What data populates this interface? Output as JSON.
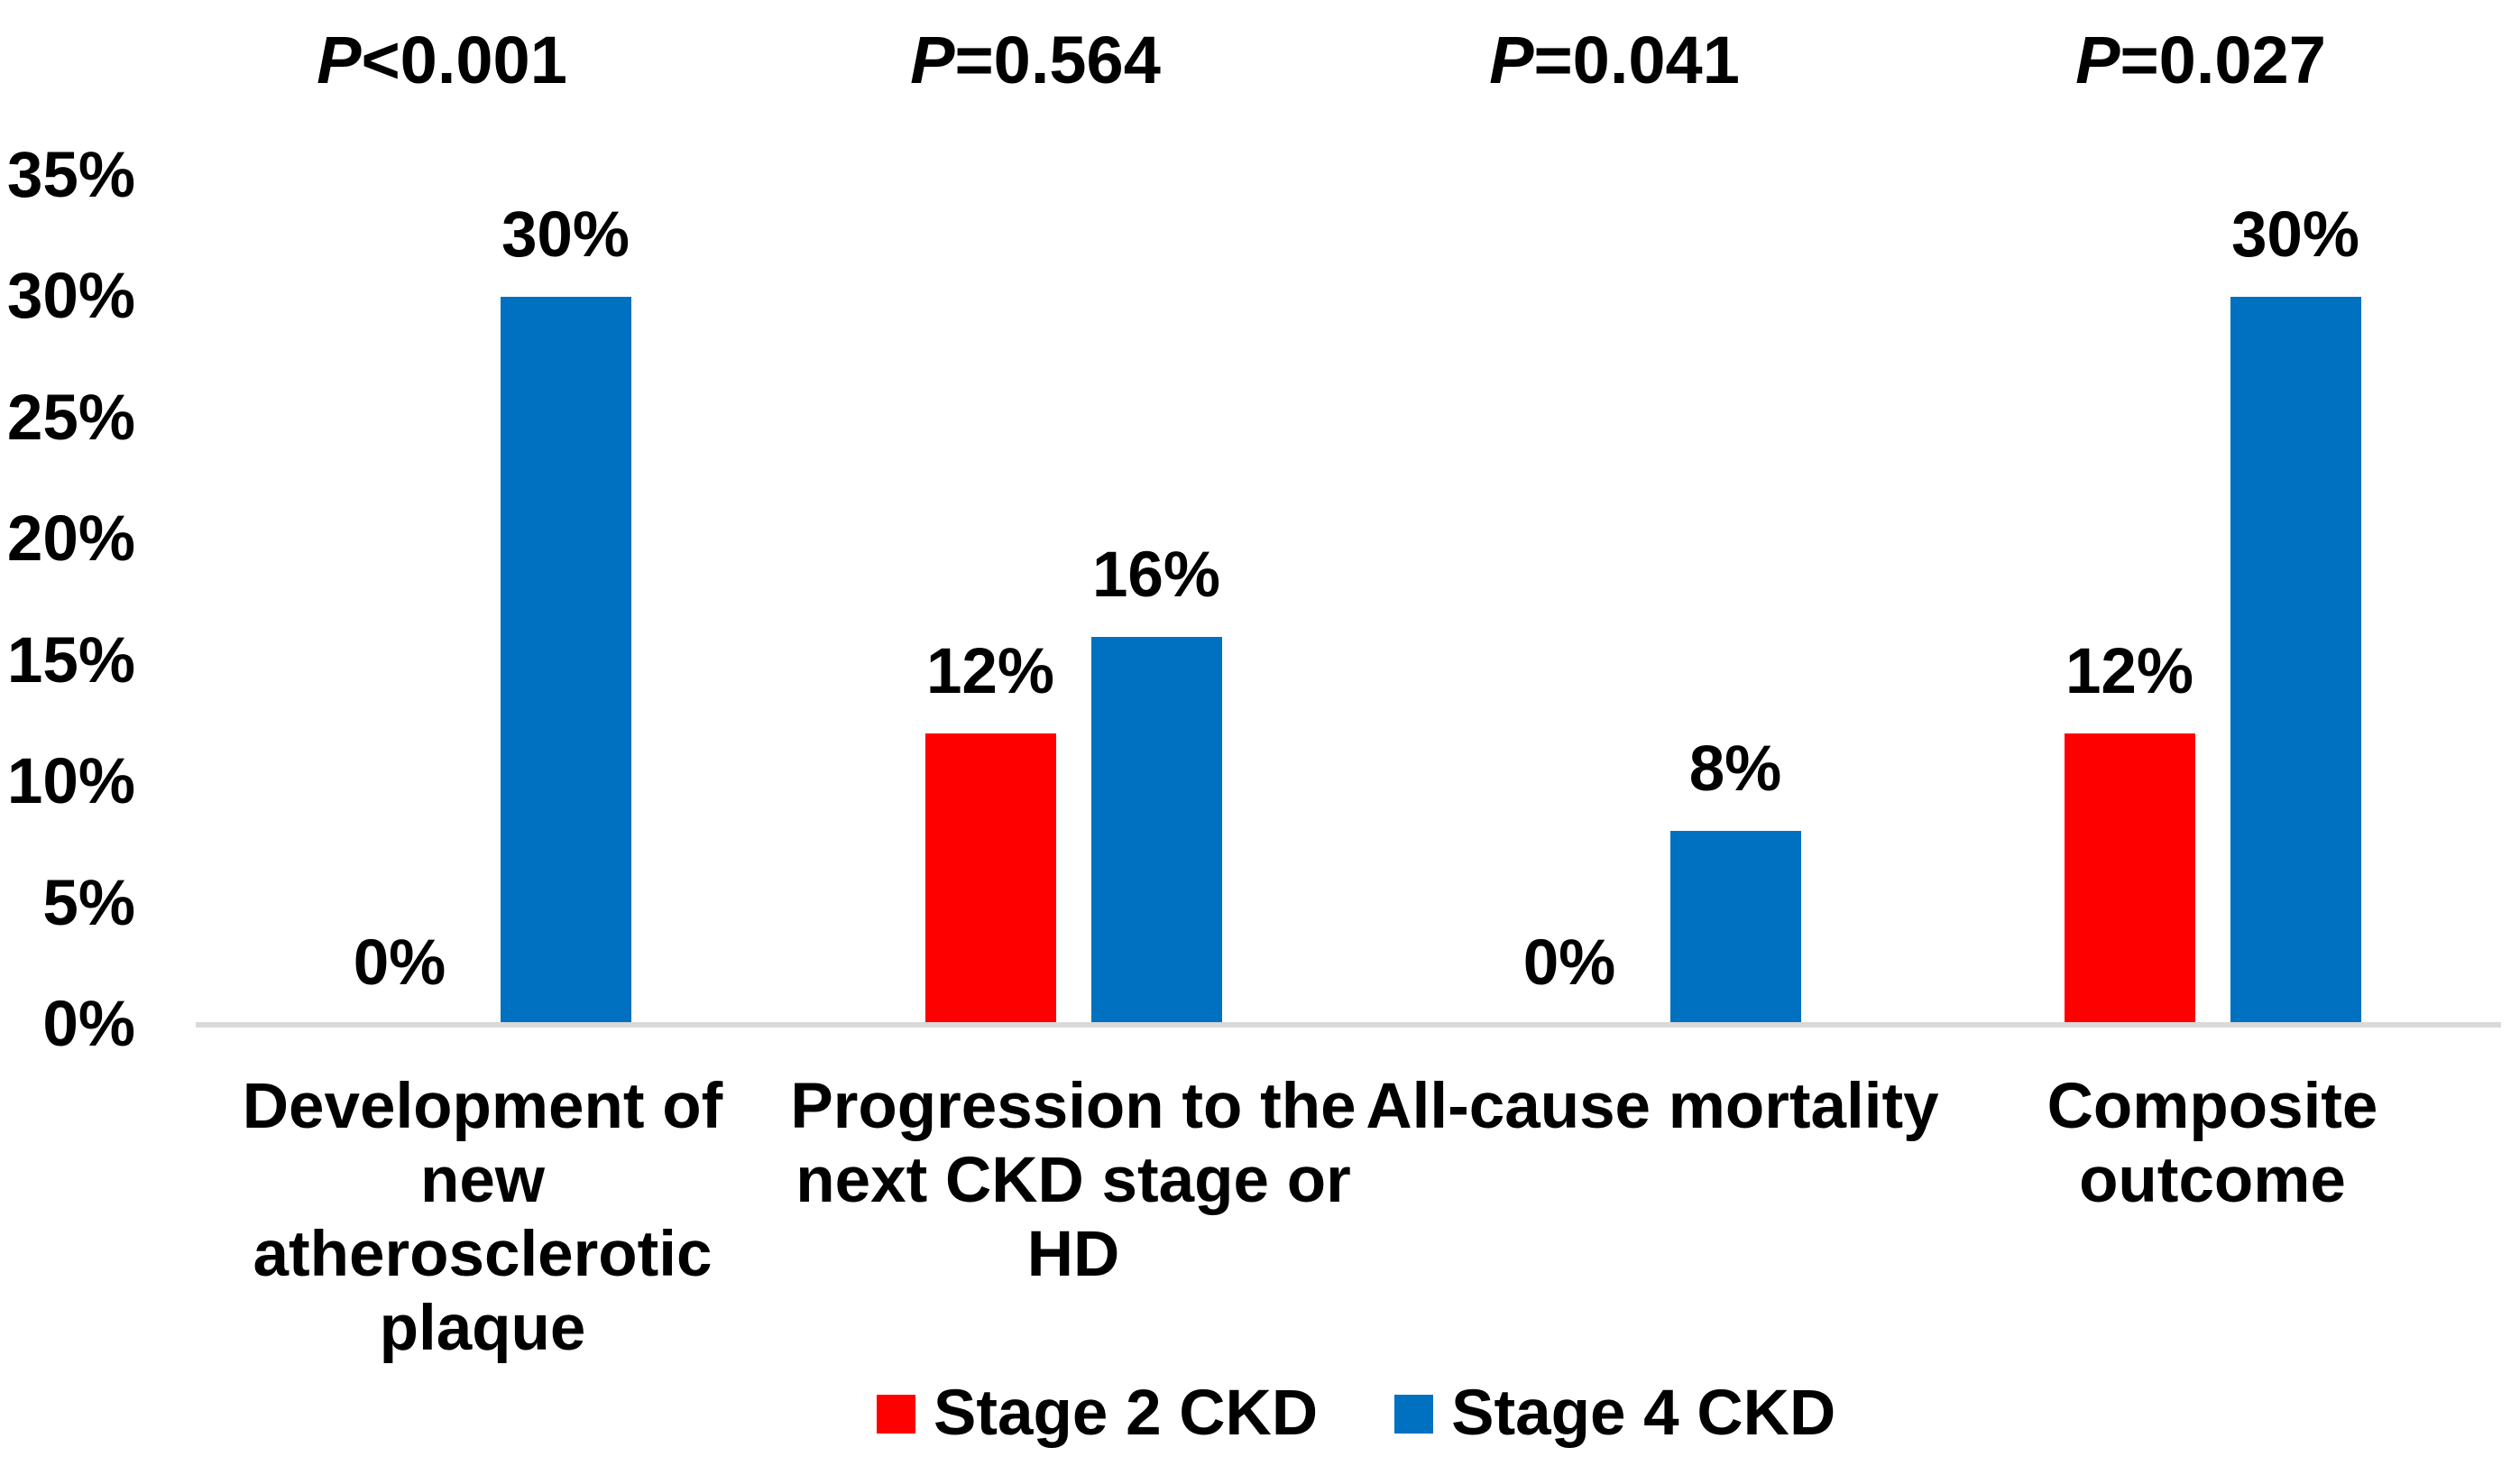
{
  "chart_data": {
    "type": "bar",
    "title": "",
    "xlabel": "",
    "ylabel": "",
    "ylim": [
      0,
      35
    ],
    "grid": false,
    "legend_position": "bottom",
    "y_ticks": [
      "0%",
      "5%",
      "10%",
      "15%",
      "20%",
      "25%",
      "30%",
      "35%"
    ],
    "axis_line_color": "#D9D9D9",
    "text_color": "#000000",
    "series": [
      {
        "name": "Stage 2 CKD",
        "color": "#FF0000"
      },
      {
        "name": "Stage 4 CKD",
        "color": "#0070C0"
      }
    ],
    "categories": [
      "Development of new atherosclerotic plaque",
      "Progression to the next CKD stage or HD",
      "All-cause mortality",
      "Composite outcome"
    ],
    "groups": [
      {
        "label_lines": [
          "Development of new",
          "atherosclerotic",
          "plaque"
        ],
        "p_value": {
          "symbol": "P",
          "rest": "<0.001"
        },
        "values": [
          0,
          30
        ],
        "value_labels": [
          "0%",
          "30%"
        ]
      },
      {
        "label_lines": [
          "Progression to the",
          "next CKD stage or HD"
        ],
        "p_value": {
          "symbol": "P",
          "rest": "=0.564"
        },
        "values": [
          12,
          16
        ],
        "value_labels": [
          "12%",
          "16%"
        ]
      },
      {
        "label_lines": [
          "All-cause mortality"
        ],
        "p_value": {
          "symbol": "P",
          "rest": "=0.041"
        },
        "values": [
          0,
          8
        ],
        "value_labels": [
          "0%",
          "8%"
        ]
      },
      {
        "label_lines": [
          "Composite outcome"
        ],
        "p_value": {
          "symbol": "P",
          "rest": "=0.027"
        },
        "values": [
          12,
          30
        ],
        "value_labels": [
          "12%",
          "30%"
        ]
      }
    ]
  }
}
